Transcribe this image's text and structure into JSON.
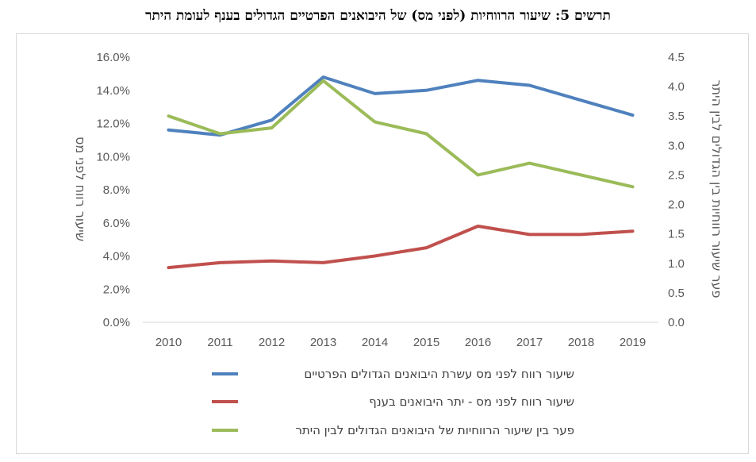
{
  "page_title": "תרשים 5: שיעור הרווחיות (לפני מס) של היבואנים הפרטיים הגדולים בענף לעומת היתר",
  "chart_data": {
    "type": "line",
    "title": "תרשים 5: שיעור הרווחיות (לפני מס) של היבואנים הפרטיים הגדולים בענף לעומת היתר",
    "x": [
      "2010",
      "2011",
      "2012",
      "2013",
      "2014",
      "2015",
      "2016",
      "2017",
      "2018",
      "2019"
    ],
    "ylabel": "שיעור רווח לפני מס",
    "y2label": "פער שיעור רווחיות בין הגדולים לבין היתר",
    "ylim": [
      0,
      16
    ],
    "y2lim": [
      0,
      4.5
    ],
    "yticks": [
      "0.0%",
      "2.0%",
      "4.0%",
      "6.0%",
      "8.0%",
      "10.0%",
      "12.0%",
      "14.0%",
      "16.0%"
    ],
    "y2ticks": [
      "0.0",
      "0.5",
      "1.0",
      "1.5",
      "2.0",
      "2.5",
      "3.0",
      "3.5",
      "4.0",
      "4.5"
    ],
    "grid": false,
    "legend_position": "bottom",
    "series": [
      {
        "name": "שיעור רווח לפני מס עשרת היבואנים הגדולים הפרטיים",
        "axis": "left",
        "color": "#4f81bd",
        "values": [
          11.6,
          11.3,
          12.2,
          14.8,
          13.8,
          14.0,
          14.6,
          14.3,
          13.4,
          12.5
        ]
      },
      {
        "name": "שיעור רווח לפני מס - יתר היבואנים בענף",
        "axis": "left",
        "color": "#c0504d",
        "values": [
          3.3,
          3.6,
          3.7,
          3.6,
          4.0,
          4.5,
          5.8,
          5.3,
          5.3,
          5.5
        ]
      },
      {
        "name": "פער בין שיעור הרווחיות של היבואנים הגדולים לבין היתר",
        "axis": "right",
        "color": "#9bbb59",
        "values": [
          3.5,
          3.2,
          3.3,
          4.1,
          3.4,
          3.2,
          2.5,
          2.7,
          2.5,
          2.3
        ]
      }
    ]
  }
}
